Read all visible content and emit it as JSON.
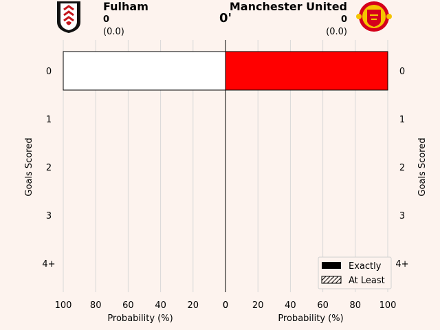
{
  "header": {
    "home_team": "Fulham",
    "away_team": "Manchester United",
    "home_score": "0",
    "away_score": "0",
    "home_xg": "(0.0)",
    "away_xg": "(0.0)",
    "minute": "0'"
  },
  "colors": {
    "background": "#fdf3ee",
    "home_bar": "#ffffff",
    "away_bar": "#ff0000",
    "gridline": "#d8d8d8"
  },
  "chart_data": {
    "type": "bar",
    "orientation": "horizontal",
    "categories": [
      "0",
      "1",
      "2",
      "3",
      "4+"
    ],
    "series": [
      {
        "name": "Fulham",
        "side": "left",
        "values": [
          100,
          0,
          0,
          0,
          0
        ]
      },
      {
        "name": "Manchester United",
        "side": "right",
        "values": [
          100,
          0,
          0,
          0,
          0
        ]
      }
    ],
    "xlabel": "Probability (%)",
    "ylabel": "Goals Scored",
    "xlim": [
      0,
      100
    ],
    "xticks": [
      "100",
      "80",
      "60",
      "40",
      "20",
      "0"
    ],
    "xticks_right": [
      "0",
      "20",
      "40",
      "60",
      "80",
      "100"
    ],
    "grid": true,
    "legend": {
      "placement": "bottom-right",
      "entries": [
        {
          "label": "Exactly",
          "style": "solid"
        },
        {
          "label": "At Least",
          "style": "hatched"
        }
      ]
    }
  }
}
